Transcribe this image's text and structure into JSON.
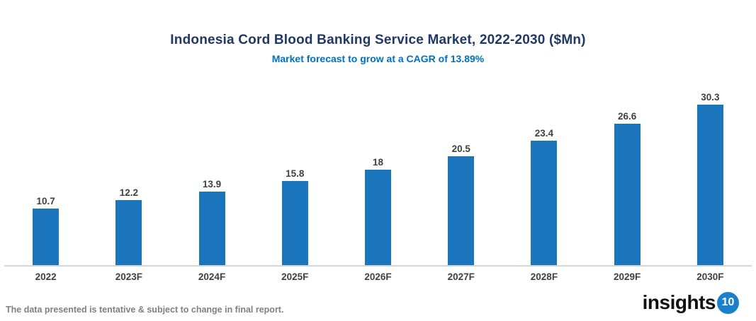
{
  "chart_data": {
    "type": "bar",
    "title": "Indonesia Cord Blood Banking Service Market, 2022-2030 ($Mn)",
    "subtitle": "Market forecast to grow at a CAGR of 13.89%",
    "categories": [
      "2022",
      "2023F",
      "2024F",
      "2025F",
      "2026F",
      "2027F",
      "2028F",
      "2029F",
      "2030F"
    ],
    "values": [
      10.7,
      12.2,
      13.9,
      15.8,
      18,
      20.5,
      23.4,
      26.6,
      30.3
    ],
    "value_labels": [
      "10.7",
      "12.2",
      "13.9",
      "15.8",
      "18",
      "20.5",
      "23.4",
      "26.6",
      "30.3"
    ],
    "ylim": [
      0,
      33
    ],
    "grid": false,
    "legend_position": "none",
    "xlabel": "",
    "ylabel": ""
  },
  "colors": {
    "title": "#1F3864",
    "subtitle": "#0070C0",
    "bar": "#1B75BC",
    "labels": "#404040",
    "axis_line": "#D6D6D6",
    "disclaimer": "#808080",
    "logo_badge_bg": "#1B7FC9"
  },
  "footer": {
    "disclaimer": "The data presented is tentative & subject to change in final report.",
    "logo_text": "insights",
    "logo_badge": "10"
  }
}
